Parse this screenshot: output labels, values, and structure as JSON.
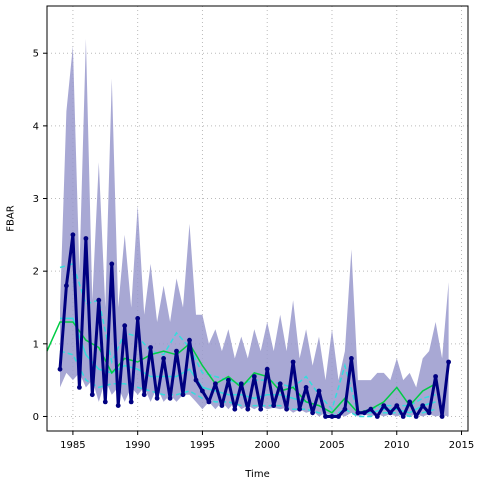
{
  "chart_data": {
    "type": "line",
    "xlabel": "Time",
    "ylabel": "FBAR",
    "xlim": [
      1983,
      2015.5
    ],
    "ylim": [
      -0.2,
      5.65
    ],
    "x_ticks": [
      "1985",
      "1990",
      "1995",
      "2000",
      "2005",
      "2010",
      "2015"
    ],
    "y_ticks": [
      "0",
      "1",
      "2",
      "3",
      "4",
      "5"
    ],
    "grid": true,
    "colors": {
      "band": "#9999cc",
      "estimate": "#000080",
      "green": "#00cc44",
      "cyan": "#33dddd",
      "grid": "#bbbbbb"
    },
    "series": [
      {
        "style": "band",
        "x": [
          1984,
          1984.5,
          1985,
          1985.5,
          1986,
          1986.5,
          1987,
          1987.5,
          1988,
          1988.5,
          1989,
          1989.5,
          1990,
          1990.5,
          1991,
          1991.5,
          1992,
          1992.5,
          1993,
          1993.5,
          1994,
          1994.5,
          1995,
          1995.5,
          1996,
          1996.5,
          1997,
          1997.5,
          1998,
          1998.5,
          1999,
          1999.5,
          2000,
          2000.5,
          2001,
          2001.5,
          2002,
          2002.5,
          2003,
          2003.5,
          2004,
          2004.5,
          2005,
          2005.5,
          2006,
          2006.5,
          2007,
          2007.5,
          2008,
          2008.5,
          2009,
          2009.5,
          2010,
          2010.5,
          2011,
          2011.5,
          2012,
          2012.5,
          2013,
          2013.5,
          2014
        ],
        "lower": [
          0.4,
          0.6,
          0.5,
          0.6,
          0.4,
          0.5,
          0.2,
          0.5,
          0.3,
          0.4,
          0.2,
          0.4,
          0.3,
          0.4,
          0.2,
          0.4,
          0.2,
          0.3,
          0.2,
          0.3,
          0.3,
          0.2,
          0.1,
          0.2,
          0.1,
          0.2,
          0.1,
          0.2,
          0.1,
          0.15,
          0.1,
          0.15,
          0.1,
          0.12,
          0.1,
          0.12,
          0.05,
          0.1,
          0.05,
          0.08,
          0.0,
          0.05,
          0.0,
          0.03,
          0.0,
          0.05,
          0.0,
          0.03,
          0.0,
          0.03,
          0.0,
          0.03,
          0.0,
          0.03,
          0.0,
          0.03,
          0.0,
          0.03,
          0.0,
          0.02,
          0.0
        ],
        "upper": [
          1.5,
          4.2,
          5.1,
          2.0,
          5.2,
          1.6,
          3.5,
          1.5,
          4.65,
          1.5,
          2.5,
          1.5,
          2.9,
          1.4,
          2.1,
          1.3,
          1.8,
          1.3,
          1.9,
          1.5,
          2.65,
          1.4,
          1.4,
          1.0,
          1.2,
          0.9,
          1.2,
          0.8,
          1.1,
          0.8,
          1.2,
          0.9,
          1.3,
          0.9,
          1.4,
          0.9,
          1.6,
          0.8,
          1.2,
          0.7,
          1.1,
          0.5,
          1.2,
          0.5,
          0.9,
          2.3,
          0.5,
          0.5,
          0.5,
          0.6,
          0.6,
          0.5,
          0.8,
          0.5,
          0.6,
          0.4,
          0.8,
          0.9,
          1.3,
          0.8,
          1.85
        ]
      },
      {
        "style": "estimate",
        "x": [
          1984,
          1984.5,
          1985,
          1985.5,
          1986,
          1986.5,
          1987,
          1987.5,
          1988,
          1988.5,
          1989,
          1989.5,
          1990,
          1990.5,
          1991,
          1991.5,
          1992,
          1992.5,
          1993,
          1993.5,
          1994,
          1994.5,
          1995,
          1995.5,
          1996,
          1996.5,
          1997,
          1997.5,
          1998,
          1998.5,
          1999,
          1999.5,
          2000,
          2000.5,
          2001,
          2001.5,
          2002,
          2002.5,
          2003,
          2003.5,
          2004,
          2004.5,
          2005,
          2005.5,
          2006,
          2006.5,
          2007,
          2007.5,
          2008,
          2008.5,
          2009,
          2009.5,
          2010,
          2010.5,
          2011,
          2011.5,
          2012,
          2012.5,
          2013,
          2013.5,
          2014
        ],
        "y": [
          0.65,
          1.8,
          2.5,
          0.4,
          2.45,
          0.3,
          1.6,
          0.2,
          2.1,
          0.15,
          1.25,
          0.2,
          1.35,
          0.3,
          0.95,
          0.25,
          0.8,
          0.25,
          0.9,
          0.3,
          1.05,
          0.5,
          0.35,
          0.2,
          0.45,
          0.15,
          0.5,
          0.1,
          0.45,
          0.1,
          0.55,
          0.1,
          0.65,
          0.15,
          0.45,
          0.1,
          0.75,
          0.1,
          0.4,
          0.05,
          0.35,
          0.0,
          0.0,
          0.0,
          0.1,
          0.8,
          0.05,
          0.05,
          0.1,
          0.0,
          0.15,
          0.05,
          0.15,
          0.0,
          0.2,
          0.0,
          0.15,
          0.05,
          0.55,
          0.0,
          0.75
        ]
      },
      {
        "style": "green",
        "x": [
          1983,
          1984,
          1985,
          1986,
          1987,
          1988,
          1989,
          1990,
          1991,
          1992,
          1993,
          1994,
          1995,
          1996,
          1997,
          1998,
          1999,
          2000,
          2001,
          2002,
          2003,
          2004,
          2005,
          2006,
          2007,
          2008,
          2009,
          2010,
          2011,
          2012,
          2013
        ],
        "y": [
          0.9,
          1.3,
          1.3,
          1.05,
          0.95,
          0.6,
          0.8,
          0.75,
          0.85,
          0.9,
          0.85,
          1.0,
          0.7,
          0.45,
          0.55,
          0.4,
          0.6,
          0.55,
          0.35,
          0.4,
          0.2,
          0.15,
          0.05,
          0.25,
          0.05,
          0.1,
          0.2,
          0.4,
          0.15,
          0.35,
          0.45
        ]
      },
      {
        "style": "cyan-solid",
        "x": [
          1984,
          1985,
          1986,
          1987,
          1988,
          1989,
          1990,
          1991,
          1992,
          1993,
          1994,
          1995,
          1996,
          1997,
          1998,
          1999,
          2000,
          2001,
          2002,
          2003,
          2004,
          2005,
          2006,
          2007,
          2008,
          2009,
          2010,
          2011,
          2012,
          2013
        ],
        "y": [
          1.35,
          1.35,
          0.85,
          0.65,
          0.6,
          0.7,
          0.65,
          0.55,
          0.55,
          0.55,
          0.65,
          0.4,
          0.35,
          0.3,
          0.3,
          0.25,
          0.3,
          0.3,
          0.25,
          0.2,
          0.15,
          0.05,
          0.25,
          0.05,
          0.05,
          0.1,
          0.1,
          0.05,
          0.15,
          0.2
        ]
      },
      {
        "style": "cyan-dashed",
        "x": [
          1984,
          1985,
          1986,
          1987,
          1988,
          1989,
          1990,
          1991,
          1992,
          1993,
          1994,
          1995,
          1996,
          1997,
          1998,
          1999,
          2000,
          2001,
          2002,
          2003,
          2004,
          2005,
          2006,
          2007,
          2008,
          2009,
          2010,
          2011,
          2012,
          2013
        ],
        "y": [
          2.05,
          2.1,
          1.55,
          1.6,
          0.75,
          1.15,
          1.1,
          0.9,
          0.85,
          1.15,
          0.95,
          0.6,
          0.55,
          0.5,
          0.45,
          0.5,
          0.5,
          0.45,
          0.4,
          0.55,
          0.3,
          0.1,
          0.7,
          0.05,
          0.1,
          0.15,
          0.15,
          0.15,
          0.25,
          0.3
        ]
      },
      {
        "style": "cyan-dashed",
        "x": [
          1984,
          1985,
          1986,
          1987,
          1988,
          1989,
          1990,
          1991,
          1992,
          1993,
          1994,
          1995,
          1996,
          1997,
          1998,
          1999,
          2000,
          2001,
          2002,
          2003,
          2004,
          2005,
          2006,
          2007,
          2008,
          2009,
          2010,
          2011,
          2012,
          2013
        ],
        "y": [
          0.9,
          0.85,
          0.5,
          0.4,
          0.45,
          0.45,
          0.4,
          0.35,
          0.3,
          0.3,
          0.35,
          0.25,
          0.2,
          0.2,
          0.15,
          0.15,
          0.15,
          0.15,
          0.1,
          0.1,
          0.05,
          0.0,
          0.1,
          0.0,
          0.0,
          0.05,
          0.05,
          0.0,
          0.05,
          0.1
        ]
      }
    ]
  }
}
